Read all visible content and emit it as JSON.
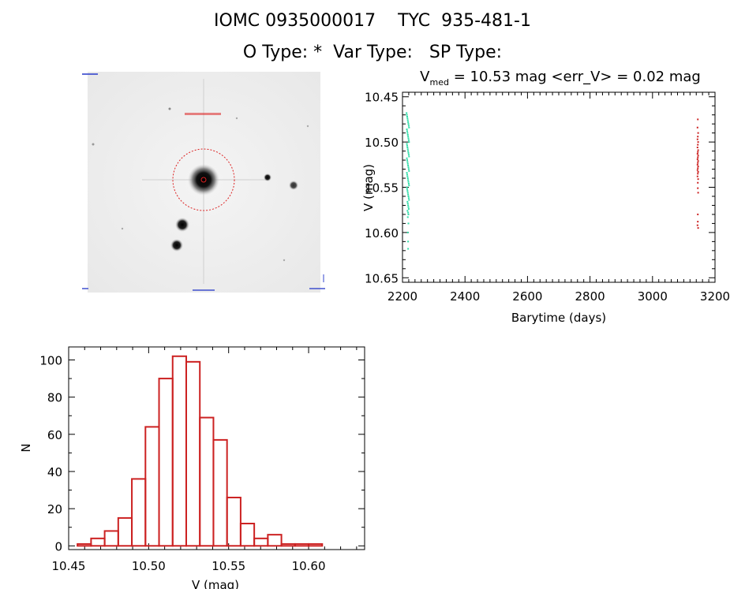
{
  "header": {
    "title_line1": "IOMC 0935000017    TYC  935-481-1",
    "title_line2": "O Type: *  Var Type:   SP Type:"
  },
  "image_panel": {
    "kind": "sky-image-cutout",
    "tiny_labels": [
      "",
      "",
      "",
      "",
      "",
      ""
    ]
  },
  "chart_data": [
    {
      "type": "scatter",
      "title_prefix": "V",
      "title_subscript": "med",
      "title_suffix": " = 10.53 mag <err_V> = 0.02 mag",
      "xlabel": "Barytime (days)",
      "ylabel": "V (mag)",
      "xlim": [
        2200,
        3200
      ],
      "ylim": [
        10.655,
        10.445
      ],
      "y_inverted": true,
      "xticks": [
        2200,
        2400,
        2600,
        2800,
        3000,
        3200
      ],
      "xtick_labels": [
        "2200",
        "2400",
        "2600",
        "2800",
        "3000",
        "3200"
      ],
      "yticks": [
        10.45,
        10.5,
        10.55,
        10.6,
        10.65
      ],
      "ytick_labels": [
        "10.45",
        "10.50",
        "10.55",
        "10.60",
        "10.65"
      ],
      "series": [
        {
          "color": "#33ddaa",
          "x_range": [
            2212,
            2222
          ],
          "points": [
            [
              2213,
              10.468
            ],
            [
              2214,
              10.47
            ],
            [
              2215,
              10.472
            ],
            [
              2216,
              10.474
            ],
            [
              2217,
              10.476
            ],
            [
              2218,
              10.478
            ],
            [
              2219,
              10.48
            ],
            [
              2220,
              10.482
            ],
            [
              2221,
              10.484
            ],
            [
              2214,
              10.486
            ],
            [
              2215,
              10.488
            ],
            [
              2216,
              10.49
            ],
            [
              2217,
              10.492
            ],
            [
              2218,
              10.494
            ],
            [
              2219,
              10.496
            ],
            [
              2220,
              10.498
            ],
            [
              2221,
              10.5
            ],
            [
              2214,
              10.502
            ],
            [
              2215,
              10.504
            ],
            [
              2216,
              10.506
            ],
            [
              2217,
              10.508
            ],
            [
              2218,
              10.51
            ],
            [
              2219,
              10.512
            ],
            [
              2220,
              10.514
            ],
            [
              2221,
              10.516
            ],
            [
              2214,
              10.518
            ],
            [
              2215,
              10.52
            ],
            [
              2216,
              10.522
            ],
            [
              2217,
              10.524
            ],
            [
              2218,
              10.526
            ],
            [
              2219,
              10.528
            ],
            [
              2220,
              10.53
            ],
            [
              2221,
              10.532
            ],
            [
              2214,
              10.534
            ],
            [
              2215,
              10.536
            ],
            [
              2216,
              10.538
            ],
            [
              2217,
              10.54
            ],
            [
              2218,
              10.542
            ],
            [
              2219,
              10.544
            ],
            [
              2220,
              10.546
            ],
            [
              2221,
              10.548
            ],
            [
              2214,
              10.55
            ],
            [
              2215,
              10.552
            ],
            [
              2216,
              10.554
            ],
            [
              2217,
              10.556
            ],
            [
              2218,
              10.558
            ],
            [
              2219,
              10.56
            ],
            [
              2220,
              10.562
            ],
            [
              2221,
              10.564
            ],
            [
              2216,
              10.566
            ],
            [
              2217,
              10.568
            ],
            [
              2218,
              10.57
            ],
            [
              2219,
              10.572
            ],
            [
              2220,
              10.574
            ],
            [
              2216,
              10.576
            ],
            [
              2218,
              10.578
            ],
            [
              2219,
              10.58
            ],
            [
              2217,
              10.583
            ],
            [
              2219,
              10.59
            ],
            [
              2217,
              10.6
            ],
            [
              2218,
              10.61
            ],
            [
              2218,
              10.618
            ]
          ]
        },
        {
          "color": "#cc2222",
          "x_range": [
            3143,
            3147
          ],
          "points": [
            [
              3145,
              10.475
            ],
            [
              3144,
              10.484
            ],
            [
              3146,
              10.49
            ],
            [
              3145,
              10.494
            ],
            [
              3144,
              10.497
            ],
            [
              3146,
              10.5
            ],
            [
              3145,
              10.503
            ],
            [
              3144,
              10.506
            ],
            [
              3146,
              10.509
            ],
            [
              3145,
              10.511
            ],
            [
              3144,
              10.513
            ],
            [
              3146,
              10.515
            ],
            [
              3145,
              10.517
            ],
            [
              3144,
              10.519
            ],
            [
              3146,
              10.521
            ],
            [
              3145,
              10.523
            ],
            [
              3144,
              10.525
            ],
            [
              3146,
              10.527
            ],
            [
              3145,
              10.529
            ],
            [
              3144,
              10.531
            ],
            [
              3146,
              10.533
            ],
            [
              3145,
              10.535
            ],
            [
              3144,
              10.538
            ],
            [
              3146,
              10.541
            ],
            [
              3145,
              10.545
            ],
            [
              3145,
              10.551
            ],
            [
              3146,
              10.556
            ],
            [
              3145,
              10.58
            ],
            [
              3145,
              10.588
            ],
            [
              3144,
              10.592
            ],
            [
              3146,
              10.595
            ]
          ]
        }
      ]
    },
    {
      "type": "bar",
      "subtype": "histogram",
      "xlabel": "V (mag)",
      "ylabel": "N",
      "xlim": [
        10.45,
        10.635
      ],
      "ylim": [
        -2,
        107
      ],
      "xticks": [
        10.45,
        10.5,
        10.55,
        10.6
      ],
      "xtick_labels": [
        "10.45",
        "10.50",
        "10.55",
        "10.60"
      ],
      "yticks": [
        0,
        20,
        40,
        60,
        80,
        100
      ],
      "ytick_labels": [
        "0",
        "20",
        "40",
        "60",
        "80",
        "100"
      ],
      "bar_color": "#cc2222",
      "bin_width": 0.0085,
      "bin_start": 10.4555,
      "values": [
        1,
        4,
        8,
        15,
        36,
        64,
        90,
        102,
        99,
        69,
        57,
        26,
        12,
        4,
        6,
        1,
        1,
        1
      ]
    }
  ]
}
